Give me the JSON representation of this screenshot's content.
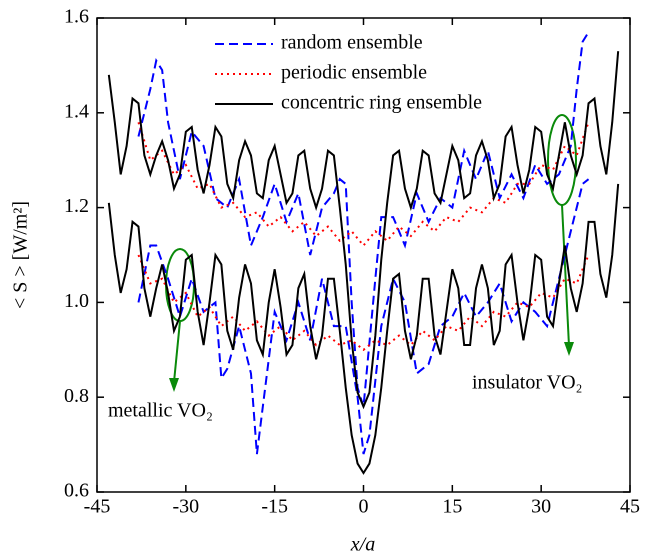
{
  "chart_data": {
    "type": "line",
    "xlabel": "x/a",
    "ylabel": "< S > [W/m²]",
    "xlim": [
      -45,
      45
    ],
    "xticks": [
      -45,
      -30,
      -15,
      0,
      15,
      30,
      45
    ],
    "ylim": [
      0.6,
      1.6
    ],
    "yticks": [
      0.6,
      0.8,
      {
        "value": 1,
        "label": "1.0"
      },
      1.2,
      1.4,
      1.6
    ],
    "legend": "upper center",
    "series": [
      {
        "name": "random ensemble",
        "color": "#0000ff",
        "style": "dashed",
        "x": [
          -38,
          -36,
          -35,
          -34,
          -33,
          -31,
          -29,
          -27,
          -25,
          -23,
          -21,
          -19,
          -17,
          -15,
          -13,
          -11,
          -9,
          -7,
          -5,
          -4,
          -3,
          -2,
          -1,
          0,
          2,
          3,
          5,
          7,
          9,
          11,
          13,
          15,
          17,
          19,
          21,
          23,
          25,
          27,
          29,
          31,
          33,
          35,
          36,
          37,
          38
        ],
        "values": [
          1.35,
          1.45,
          1.51,
          1.49,
          1.38,
          1.26,
          1.36,
          1.33,
          1.22,
          1.2,
          1.26,
          1.12,
          1.18,
          1.25,
          1.17,
          1.23,
          1.1,
          1.2,
          1.23,
          1.26,
          1.25,
          1.0,
          0.82,
          0.78,
          1.05,
          1.18,
          1.18,
          1.12,
          1.23,
          1.17,
          1.22,
          1.2,
          1.32,
          1.26,
          1.32,
          1.22,
          1.27,
          1.22,
          1.29,
          1.25,
          1.27,
          1.33,
          1.45,
          1.55,
          1.57
        ]
      },
      {
        "color": "#0000ff",
        "style": "dashed",
        "x": [
          -38,
          -36,
          -35,
          -33,
          -31,
          -29,
          -27,
          -25,
          -24,
          -23,
          -21,
          -19,
          -18,
          -17,
          -15,
          -13,
          -11,
          -9,
          -7,
          -5,
          -3,
          -1,
          0,
          1,
          3,
          5,
          7,
          9,
          11,
          13,
          15,
          17,
          19,
          21,
          23,
          25,
          27,
          29,
          31,
          33,
          35,
          37,
          38
        ],
        "values": [
          1.0,
          1.12,
          1.12,
          1.05,
          0.97,
          1.05,
          0.98,
          1.0,
          0.84,
          0.86,
          0.95,
          0.85,
          0.68,
          0.78,
          0.98,
          0.92,
          1.0,
          0.92,
          1.05,
          0.95,
          0.95,
          0.8,
          0.68,
          0.72,
          0.95,
          1.05,
          1.0,
          0.85,
          0.87,
          0.95,
          0.97,
          1.02,
          0.97,
          1.0,
          1.04,
          0.96,
          1.0,
          0.98,
          0.95,
          1.05,
          1.15,
          1.25,
          1.26
        ]
      },
      {
        "name": "periodic ensemble",
        "color": "#ff0000",
        "style": "dotted",
        "x": [
          -38,
          -36,
          -34,
          -32,
          -30,
          -28,
          -26,
          -24,
          -22,
          -20,
          -18,
          -16,
          -14,
          -12,
          -10,
          -8,
          -6,
          -4,
          -2,
          0,
          2,
          4,
          6,
          8,
          10,
          12,
          14,
          16,
          18,
          20,
          22,
          24,
          26,
          28,
          30,
          32,
          34,
          36,
          38
        ],
        "values": [
          1.38,
          1.3,
          1.32,
          1.27,
          1.29,
          1.24,
          1.25,
          1.2,
          1.21,
          1.18,
          1.19,
          1.16,
          1.18,
          1.15,
          1.17,
          1.14,
          1.16,
          1.13,
          1.15,
          1.12,
          1.15,
          1.13,
          1.16,
          1.14,
          1.17,
          1.15,
          1.18,
          1.17,
          1.2,
          1.19,
          1.22,
          1.21,
          1.25,
          1.25,
          1.29,
          1.28,
          1.33,
          1.31,
          1.38
        ]
      },
      {
        "color": "#ff0000",
        "style": "dotted",
        "x": [
          -38,
          -36,
          -34,
          -32,
          -30,
          -28,
          -26,
          -24,
          -22,
          -20,
          -18,
          -16,
          -14,
          -12,
          -10,
          -8,
          -6,
          -4,
          -2,
          0,
          2,
          4,
          6,
          8,
          10,
          12,
          14,
          16,
          18,
          20,
          22,
          24,
          26,
          28,
          30,
          32,
          34,
          36,
          38
        ],
        "values": [
          1.1,
          1.04,
          1.05,
          1.0,
          1.02,
          0.97,
          0.99,
          0.95,
          0.97,
          0.94,
          0.96,
          0.93,
          0.95,
          0.92,
          0.94,
          0.91,
          0.93,
          0.91,
          0.92,
          0.9,
          0.92,
          0.91,
          0.93,
          0.91,
          0.94,
          0.92,
          0.95,
          0.94,
          0.97,
          0.95,
          0.98,
          0.97,
          1.0,
          0.99,
          1.02,
          1.01,
          1.05,
          1.04,
          1.1
        ]
      },
      {
        "name": "concentric ring ensemble",
        "color": "#000000",
        "style": "solid",
        "x": [
          -43,
          -42,
          -41,
          -40,
          -39,
          -38,
          -37,
          -36,
          -35,
          -34,
          -33,
          -32,
          -31,
          -30,
          -29,
          -28,
          -27,
          -26,
          -25,
          -24,
          -23,
          -22,
          -21,
          -20,
          -19,
          -18,
          -17,
          -16,
          -15,
          -14,
          -13,
          -12,
          -11,
          -10,
          -9,
          -8,
          -7,
          -6,
          -5,
          -4,
          -3,
          -2,
          -1,
          0,
          1,
          2,
          3,
          4,
          5,
          6,
          7,
          8,
          9,
          10,
          11,
          12,
          13,
          14,
          15,
          16,
          17,
          18,
          19,
          20,
          21,
          22,
          23,
          24,
          25,
          26,
          27,
          28,
          29,
          30,
          31,
          32,
          33,
          34,
          35,
          36,
          37,
          38,
          39,
          40,
          41,
          42,
          43
        ],
        "values": [
          1.48,
          1.38,
          1.27,
          1.33,
          1.43,
          1.42,
          1.31,
          1.27,
          1.31,
          1.34,
          1.3,
          1.24,
          1.27,
          1.36,
          1.37,
          1.28,
          1.23,
          1.29,
          1.37,
          1.35,
          1.25,
          1.22,
          1.3,
          1.34,
          1.31,
          1.23,
          1.22,
          1.3,
          1.33,
          1.27,
          1.21,
          1.23,
          1.31,
          1.32,
          1.24,
          1.2,
          1.24,
          1.32,
          1.31,
          1.2,
          1.08,
          0.92,
          0.81,
          0.78,
          0.81,
          0.93,
          1.09,
          1.21,
          1.31,
          1.32,
          1.24,
          1.2,
          1.24,
          1.32,
          1.31,
          1.23,
          1.21,
          1.27,
          1.33,
          1.3,
          1.22,
          1.23,
          1.31,
          1.34,
          1.3,
          1.22,
          1.25,
          1.35,
          1.37,
          1.29,
          1.23,
          1.28,
          1.37,
          1.36,
          1.27,
          1.24,
          1.31,
          1.38,
          1.31,
          1.27,
          1.31,
          1.42,
          1.43,
          1.33,
          1.27,
          1.38,
          1.53
        ]
      },
      {
        "color": "#000000",
        "style": "solid",
        "x": [
          -43,
          -42,
          -41,
          -40,
          -39,
          -38,
          -37,
          -36,
          -35,
          -34,
          -33,
          -32,
          -31,
          -30,
          -29,
          -28,
          -27,
          -26,
          -25,
          -24,
          -23,
          -22,
          -21,
          -20,
          -19,
          -18,
          -17,
          -16,
          -15,
          -14,
          -13,
          -12,
          -11,
          -10,
          -9,
          -8,
          -7,
          -6,
          -5,
          -4,
          -3,
          -2,
          -1,
          0,
          1,
          2,
          3,
          4,
          5,
          6,
          7,
          8,
          9,
          10,
          11,
          12,
          13,
          14,
          15,
          16,
          17,
          18,
          19,
          20,
          21,
          22,
          23,
          24,
          25,
          26,
          27,
          28,
          29,
          30,
          31,
          32,
          33,
          34,
          35,
          36,
          37,
          38,
          39,
          40,
          41,
          42,
          43
        ],
        "values": [
          1.21,
          1.1,
          1.02,
          1.07,
          1.17,
          1.16,
          1.03,
          0.97,
          1.03,
          1.08,
          1.02,
          0.94,
          0.97,
          1.09,
          1.1,
          0.98,
          0.91,
          1.0,
          1.1,
          1.08,
          0.94,
          0.9,
          1.01,
          1.08,
          1.04,
          0.92,
          0.89,
          1.0,
          1.07,
          0.99,
          0.89,
          0.91,
          1.03,
          1.06,
          0.95,
          0.88,
          0.93,
          1.05,
          1.05,
          0.94,
          0.82,
          0.72,
          0.66,
          0.64,
          0.66,
          0.72,
          0.82,
          0.94,
          1.05,
          1.06,
          0.94,
          0.88,
          0.93,
          1.05,
          1.05,
          0.93,
          0.89,
          0.98,
          1.07,
          1.03,
          0.91,
          0.91,
          1.03,
          1.08,
          1.03,
          0.91,
          0.94,
          1.08,
          1.1,
          1.0,
          0.92,
          0.99,
          1.1,
          1.09,
          0.97,
          0.95,
          1.04,
          1.12,
          1.03,
          0.98,
          1.04,
          1.17,
          1.17,
          1.06,
          1.01,
          1.1,
          1.25
        ]
      }
    ],
    "annotations": [
      "metallic VO₂",
      "insulator VO₂"
    ]
  }
}
